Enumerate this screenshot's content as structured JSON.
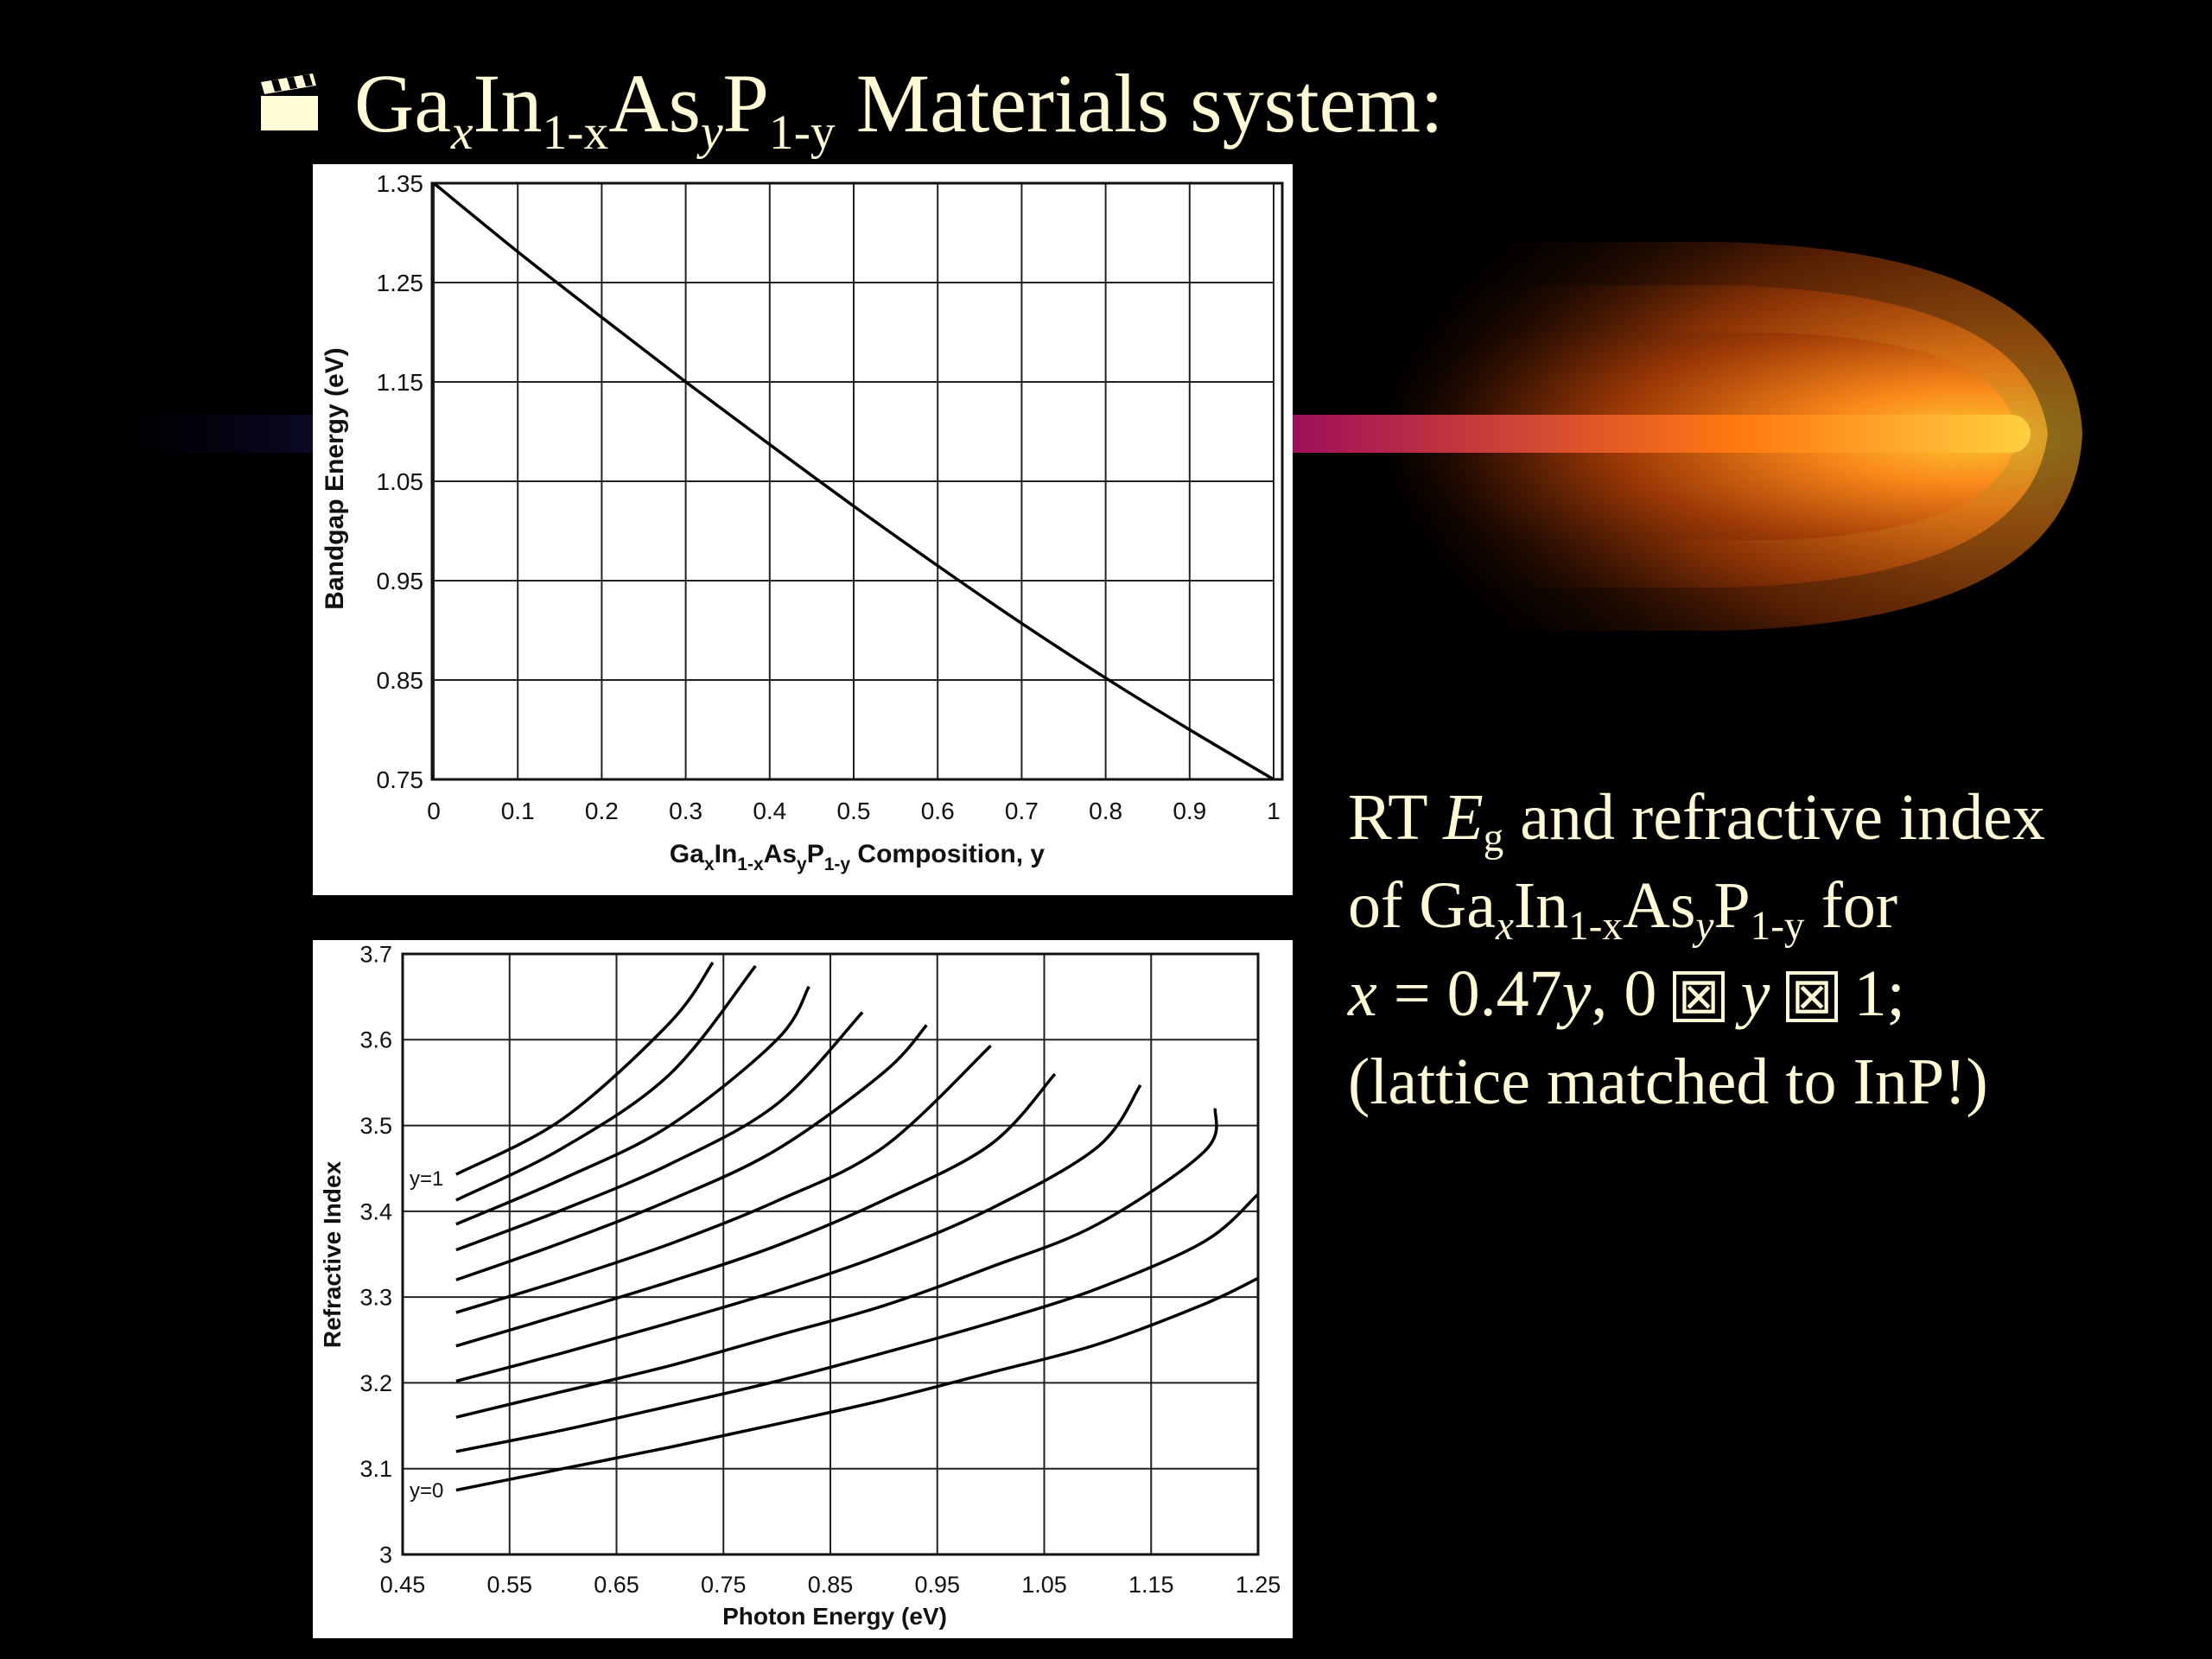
{
  "slide": {
    "title": {
      "ga": "Ga",
      "x": "x",
      "in": "In",
      "one_minus_x": "1-x",
      "as": "As",
      "y": "y",
      "p": "P",
      "one_minus_y": "1-y",
      "rest": " Materials system:"
    },
    "title_icon": "clapperboard-icon",
    "caption": {
      "line1_a": "RT ",
      "line1_e": "E",
      "line1_g": "g",
      "line1_b": " and refractive index",
      "line2_a": "of Ga",
      "line2_x": "x",
      "line2_in": "In",
      "line2_1x": "1-x",
      "line2_as": "As",
      "line2_y": "y",
      "line2_p": "P",
      "line2_1y": "1-y",
      "line2_b": " for",
      "line3_x": "x",
      "line3_eq": " = 0.47",
      "line3_y": "y",
      "line3_b": ", 0 ",
      "line3_sym1": "⊠",
      "line3_y2": " y ",
      "line3_sym2": "⊠",
      "line3_c": " 1;",
      "line4": "(lattice matched to InP!)"
    }
  },
  "colors": {
    "background": "#000000",
    "text": "#fffbd6",
    "flame_core": "#ffcc33",
    "flame_outer": "#8a2a00",
    "beam": "#a0105a"
  },
  "chart_data": [
    {
      "type": "line",
      "title": "",
      "xlabel": "Ga",
      "xlabel_sub1": "x",
      "xlabel_mid1": "In",
      "xlabel_sub2": "1-x",
      "xlabel_mid2": "As",
      "xlabel_sub3": "y",
      "xlabel_mid3": "P",
      "xlabel_sub4": "1-y",
      "xlabel_tail": " Composition, y",
      "ylabel": "Bandgap Energy (eV)",
      "xlim": [
        0,
        1
      ],
      "ylim": [
        0.75,
        1.35
      ],
      "xticks": [
        "0",
        "0.1",
        "0.2",
        "0.3",
        "0.4",
        "0.5",
        "0.6",
        "0.7",
        "0.8",
        "0.9",
        "1"
      ],
      "yticks": [
        "0.75",
        "0.85",
        "0.95",
        "1.05",
        "1.15",
        "1.25",
        "1.35"
      ],
      "grid": true,
      "series": [
        {
          "x": [
            0,
            0.1,
            0.2,
            0.3,
            0.4,
            0.5,
            0.6,
            0.7,
            0.8,
            0.9,
            1.0
          ],
          "y": [
            1.35,
            1.281,
            1.215,
            1.15,
            1.087,
            1.025,
            0.965,
            0.907,
            0.852,
            0.8,
            0.75
          ]
        }
      ]
    },
    {
      "type": "line",
      "title": "",
      "xlabel": "Photon Energy (eV)",
      "ylabel": "Refractive Index",
      "xlim": [
        0.45,
        1.25
      ],
      "ylim": [
        3.0,
        3.7
      ],
      "xticks": [
        "0.45",
        "0.55",
        "0.65",
        "0.75",
        "0.85",
        "0.95",
        "1.05",
        "1.15",
        "1.25"
      ],
      "yticks": [
        "3",
        "3.1",
        "3.2",
        "3.3",
        "3.4",
        "3.5",
        "3.6",
        "3.7"
      ],
      "grid": true,
      "annotations": [
        "y=1",
        "y=0"
      ],
      "series": [
        {
          "x": [
            0.5,
            0.6,
            0.7,
            0.74
          ],
          "y": [
            3.443,
            3.508,
            3.62,
            3.69
          ]
        },
        {
          "x": [
            0.5,
            0.6,
            0.7,
            0.78
          ],
          "y": [
            3.413,
            3.474,
            3.56,
            3.686
          ]
        },
        {
          "x": [
            0.5,
            0.6,
            0.7,
            0.8,
            0.83
          ],
          "y": [
            3.385,
            3.438,
            3.5,
            3.6,
            3.662
          ]
        },
        {
          "x": [
            0.5,
            0.6,
            0.7,
            0.8,
            0.88
          ],
          "y": [
            3.355,
            3.402,
            3.455,
            3.525,
            3.632
          ]
        },
        {
          "x": [
            0.5,
            0.6,
            0.7,
            0.8,
            0.9,
            0.94
          ],
          "y": [
            3.32,
            3.364,
            3.413,
            3.472,
            3.562,
            3.617
          ]
        },
        {
          "x": [
            0.5,
            0.6,
            0.7,
            0.8,
            0.9,
            1.0
          ],
          "y": [
            3.282,
            3.32,
            3.362,
            3.412,
            3.475,
            3.593
          ]
        },
        {
          "x": [
            0.5,
            0.6,
            0.7,
            0.8,
            0.9,
            1.0,
            1.06
          ],
          "y": [
            3.243,
            3.28,
            3.318,
            3.36,
            3.413,
            3.478,
            3.56
          ]
        },
        {
          "x": [
            0.5,
            0.6,
            0.7,
            0.8,
            0.9,
            1.0,
            1.1,
            1.14
          ],
          "y": [
            3.202,
            3.235,
            3.27,
            3.307,
            3.35,
            3.403,
            3.475,
            3.547
          ]
        },
        {
          "x": [
            0.5,
            0.6,
            0.7,
            0.8,
            0.9,
            1.0,
            1.1,
            1.2,
            1.21
          ],
          "y": [
            3.16,
            3.19,
            3.22,
            3.255,
            3.29,
            3.335,
            3.385,
            3.47,
            3.52
          ]
        },
        {
          "x": [
            0.5,
            0.6,
            0.7,
            0.8,
            0.9,
            1.0,
            1.1,
            1.2,
            1.25
          ],
          "y": [
            3.12,
            3.145,
            3.173,
            3.202,
            3.235,
            3.27,
            3.31,
            3.365,
            3.42
          ]
        },
        {
          "x": [
            0.5,
            0.6,
            0.7,
            0.8,
            0.9,
            1.0,
            1.1,
            1.2,
            1.25
          ],
          "y": [
            3.075,
            3.1,
            3.125,
            3.152,
            3.18,
            3.212,
            3.245,
            3.292,
            3.322
          ]
        }
      ]
    }
  ]
}
